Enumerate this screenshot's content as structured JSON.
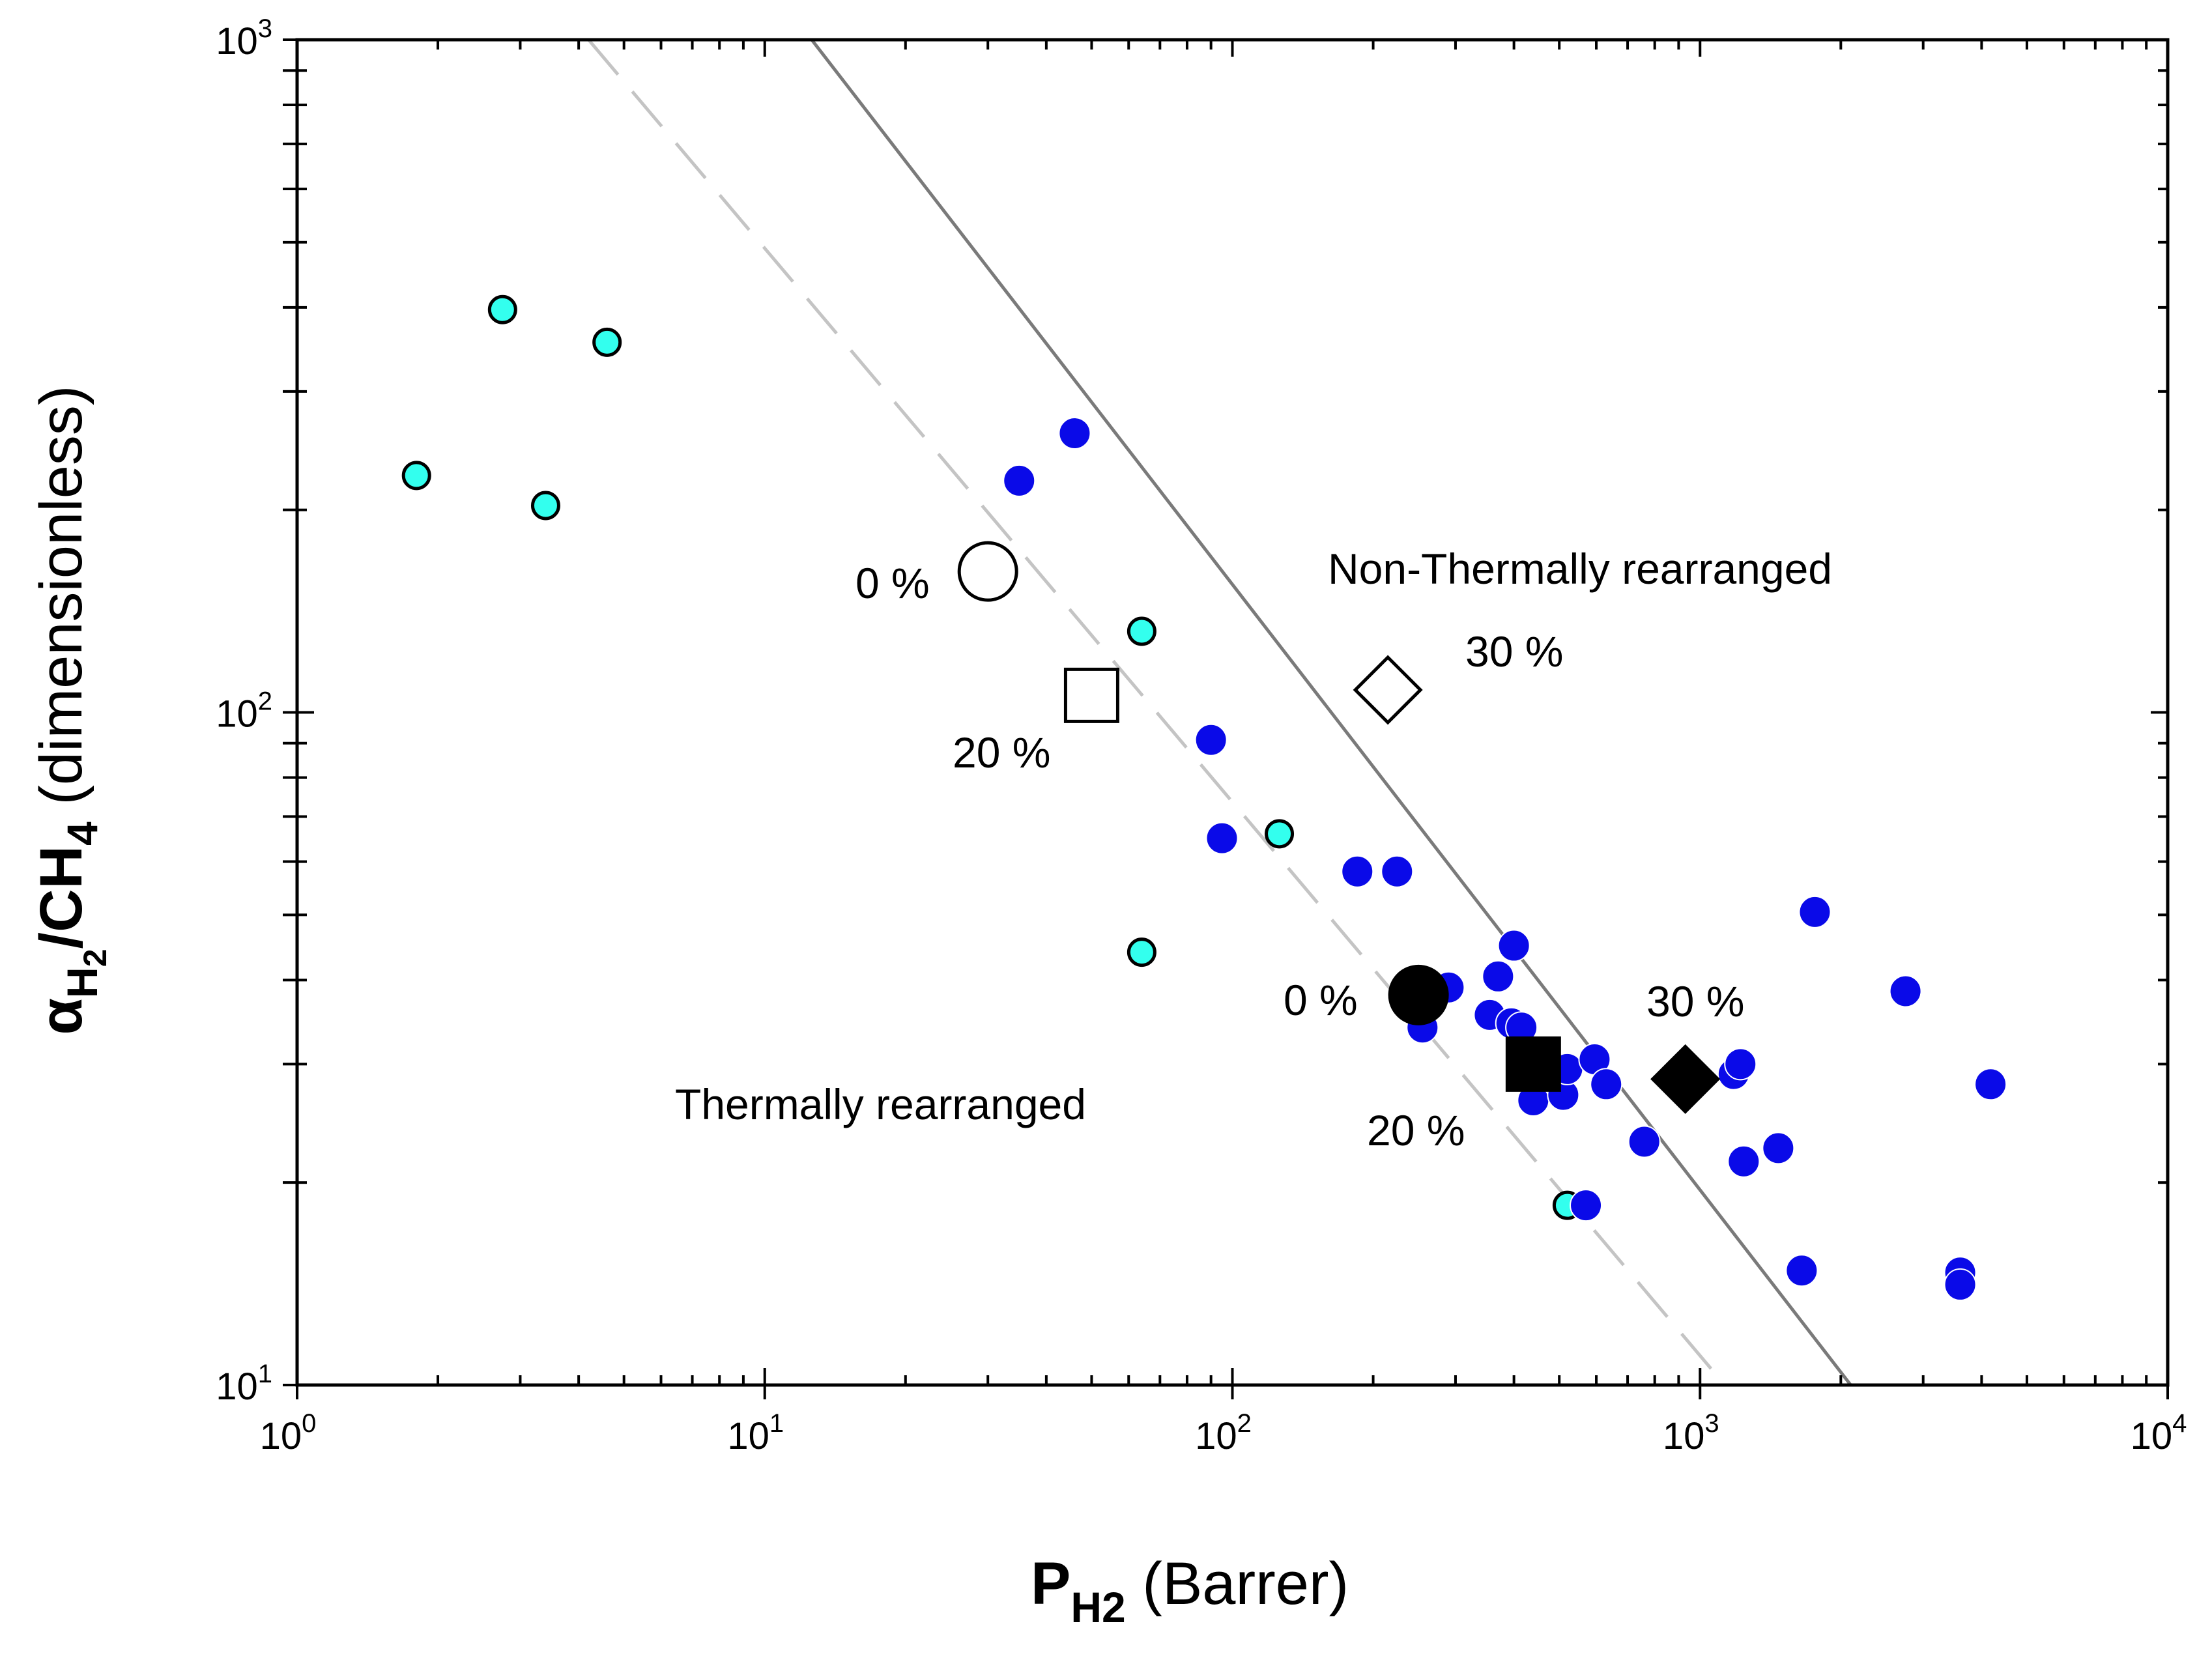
{
  "chart_data": {
    "type": "scatter",
    "x_scale": "log",
    "y_scale": "log",
    "xlim": [
      1,
      10000
    ],
    "ylim": [
      10,
      1000
    ],
    "x_ticks": [
      {
        "base": "10",
        "exp": "0",
        "value": 1
      },
      {
        "base": "10",
        "exp": "1",
        "value": 10
      },
      {
        "base": "10",
        "exp": "2",
        "value": 100
      },
      {
        "base": "10",
        "exp": "3",
        "value": 1000
      },
      {
        "base": "10",
        "exp": "4",
        "value": 10000
      }
    ],
    "y_ticks": [
      {
        "base": "10",
        "exp": "1",
        "value": 10
      },
      {
        "base": "10",
        "exp": "2",
        "value": 100
      },
      {
        "base": "10",
        "exp": "3",
        "value": 1000
      }
    ],
    "xlabel": {
      "main": "P",
      "sub": "H2",
      "unit": " (Barrer)"
    },
    "ylabel": {
      "alpha": "α",
      "h": "H",
      "two": "2",
      "slash": "/CH",
      "four": "4",
      "unit": " (dimensionless)"
    },
    "upper_bound_line": {
      "points": [
        [
          12.6,
          1000
        ],
        [
          2100,
          10
        ]
      ],
      "color": "#7a7a7a",
      "style": "solid"
    },
    "lower_bound_line": {
      "points": [
        [
          4.2,
          1000
        ],
        [
          1130,
          10
        ]
      ],
      "color": "#c4c4c4",
      "style": "dashed"
    },
    "series": [
      {
        "name": "cyan-points",
        "color": "#33ffee",
        "marker": "circle-outlined",
        "points": [
          [
            1.8,
            225
          ],
          [
            2.75,
            397
          ],
          [
            3.4,
            203
          ],
          [
            4.6,
            355
          ],
          [
            64,
            132
          ],
          [
            64,
            44
          ],
          [
            126,
            66
          ],
          [
            520,
            18.5
          ]
        ]
      },
      {
        "name": "blue-points",
        "color": "#0a0ae8",
        "marker": "circle",
        "points": [
          [
            35,
            221
          ],
          [
            46,
            260
          ],
          [
            90,
            91
          ],
          [
            95,
            65
          ],
          [
            185,
            58
          ],
          [
            225,
            58
          ],
          [
            255,
            34
          ],
          [
            290,
            39
          ],
          [
            355,
            35.5
          ],
          [
            370,
            40.5
          ],
          [
            395,
            34.5
          ],
          [
            400,
            45
          ],
          [
            415,
            34
          ],
          [
            430,
            29.5
          ],
          [
            440,
            30
          ],
          [
            440,
            26.5
          ],
          [
            510,
            27
          ],
          [
            520,
            29.5
          ],
          [
            570,
            18.5
          ],
          [
            595,
            30.5
          ],
          [
            630,
            28
          ],
          [
            760,
            23
          ],
          [
            1180,
            29
          ],
          [
            1220,
            30
          ],
          [
            1240,
            21.5
          ],
          [
            1470,
            22.5
          ],
          [
            1650,
            14.8
          ],
          [
            1760,
            50.5
          ],
          [
            2750,
            38.5
          ],
          [
            3600,
            14.7
          ],
          [
            3600,
            14.1
          ],
          [
            4180,
            28
          ]
        ]
      },
      {
        "name": "open-markers",
        "color": "#ffffff",
        "points": [
          {
            "shape": "circle",
            "x": 30,
            "y": 162,
            "label": "0 %"
          },
          {
            "shape": "square",
            "x": 50,
            "y": 106,
            "label": "20 %"
          },
          {
            "shape": "diamond",
            "x": 215,
            "y": 108,
            "label": "30 %"
          }
        ]
      },
      {
        "name": "filled-markers",
        "color": "#000000",
        "points": [
          {
            "shape": "circle",
            "x": 250,
            "y": 38,
            "label": "0 %"
          },
          {
            "shape": "square",
            "x": 440,
            "y": 30,
            "label": "20 %"
          },
          {
            "shape": "diamond",
            "x": 930,
            "y": 28.5,
            "label": "30 %"
          }
        ]
      }
    ],
    "annotations": [
      "Non-Thermally rearranged",
      "Thermally rearranged"
    ]
  }
}
